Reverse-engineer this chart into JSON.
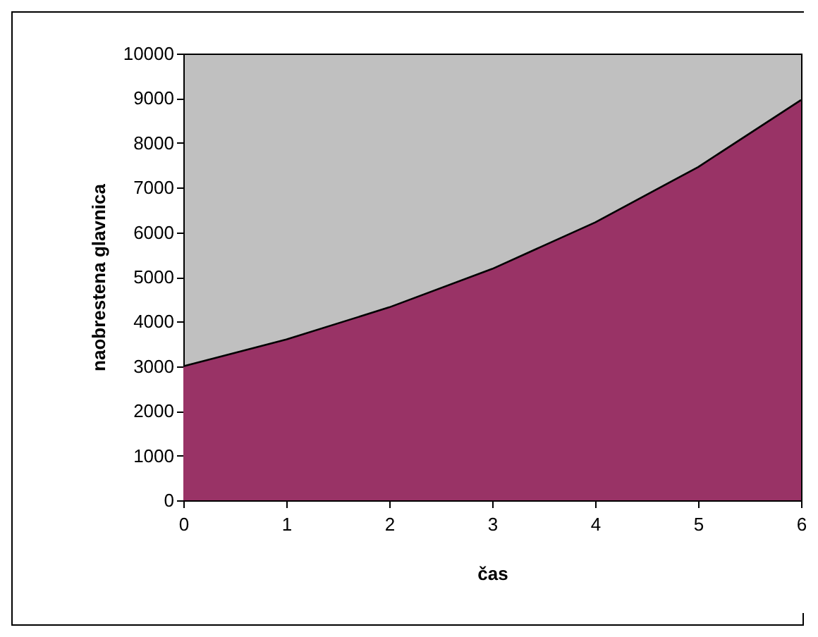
{
  "chart_data": {
    "type": "area",
    "xlabel": "čas",
    "ylabel": "naobrestena glavnica",
    "x": [
      0,
      1,
      2,
      3,
      4,
      5,
      6
    ],
    "values": [
      3000,
      3600,
      4320,
      5180,
      6220,
      7460,
      8960
    ],
    "color": "#993366",
    "xlim": [
      0,
      6
    ],
    "ylim": [
      0,
      10000
    ],
    "xticks": [
      0,
      1,
      2,
      3,
      4,
      5,
      6
    ],
    "yticks": [
      0,
      1000,
      2000,
      3000,
      4000,
      5000,
      6000,
      7000,
      8000,
      9000,
      10000
    ]
  }
}
